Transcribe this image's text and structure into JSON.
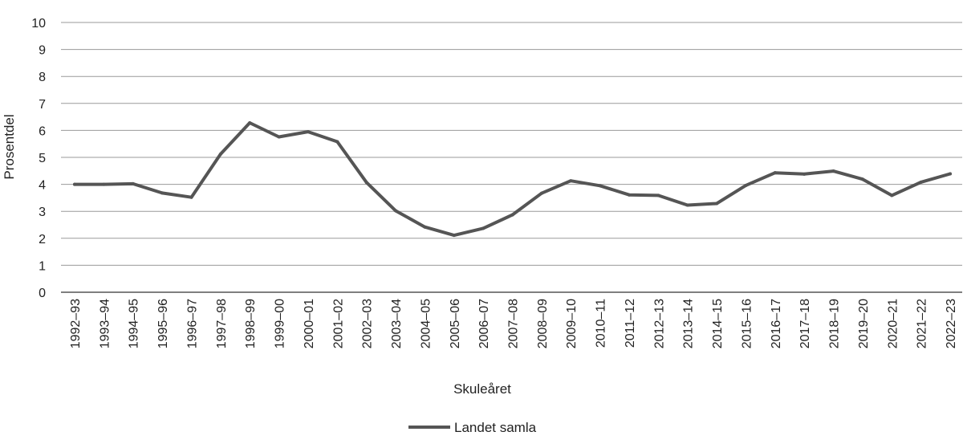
{
  "chart_data": {
    "type": "line",
    "title": "",
    "xlabel": "Skuleåret",
    "ylabel": "Prosentdel",
    "ylim": [
      0,
      10
    ],
    "yticks": [
      "0",
      "1",
      "2",
      "3",
      "4",
      "5",
      "6",
      "7",
      "8",
      "9",
      "10"
    ],
    "grid": true,
    "legend_position": "bottom-center",
    "categories": [
      "1992–93",
      "1993–94",
      "1994–95",
      "1995–96",
      "1996–97",
      "1997–98",
      "1998–99",
      "1999–00",
      "2000–01",
      "2001–02",
      "2002–03",
      "2003–04",
      "2004–05",
      "2005–06",
      "2006–07",
      "2007–08",
      "2008–09",
      "2009–10",
      "2010–11",
      "2011–12",
      "2012–13",
      "2013–14",
      "2014–15",
      "2015–16",
      "2016–17",
      "2017–18",
      "2018–19",
      "2019–20",
      "2020–21",
      "2021–22",
      "2022–23"
    ],
    "series": [
      {
        "name": "Landet samla",
        "color": "#555555",
        "values": [
          4.0,
          4.0,
          4.02,
          3.68,
          3.52,
          5.12,
          6.28,
          5.76,
          5.95,
          5.58,
          4.07,
          3.02,
          2.42,
          2.11,
          2.37,
          2.87,
          3.67,
          4.13,
          3.95,
          3.61,
          3.59,
          3.23,
          3.29,
          3.96,
          4.43,
          4.38,
          4.49,
          4.19,
          3.59,
          4.08,
          4.39
        ]
      }
    ]
  }
}
